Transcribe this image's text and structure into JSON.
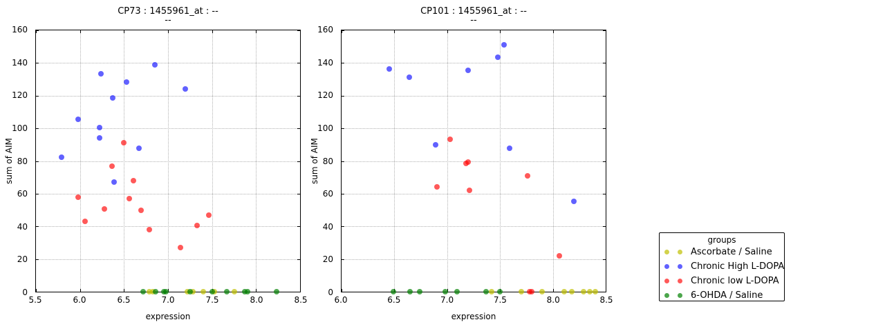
{
  "colors": {
    "yellow": "rgba(191,191,0,0.7)",
    "blue": "rgba(0,0,255,0.62)",
    "red": "rgba(255,0,0,0.65)",
    "green": "rgba(0,128,0,0.7)",
    "grid": "#b0b0b0",
    "axis": "#000000"
  },
  "legend": {
    "title": "groups",
    "entries": [
      {
        "label": "Ascorbate / Saline",
        "color": "yellow"
      },
      {
        "label": "Chronic High L-DOPA",
        "color": "blue"
      },
      {
        "label": "Chronic low L-DOPA",
        "color": "red"
      },
      {
        "label": "6-OHDA / Saline",
        "color": "green"
      }
    ]
  },
  "chart_data": [
    {
      "type": "scatter",
      "title": "CP73 : 1455961_at : --",
      "subtitle": "--",
      "xlabel": "expression",
      "ylabel": "sum of AIM",
      "xlim": [
        5.5,
        8.5
      ],
      "ylim": [
        0,
        160
      ],
      "xticks": [
        5.5,
        6.0,
        6.5,
        7.0,
        7.5,
        8.0,
        8.5
      ],
      "xtick_labels": [
        "5.5",
        "6.0",
        "6.5",
        "7.0",
        "7.5",
        "8.0",
        "8.5"
      ],
      "yticks": [
        0,
        20,
        40,
        60,
        80,
        100,
        120,
        140,
        160
      ],
      "ytick_labels": [
        "0",
        "20",
        "40",
        "60",
        "80",
        "100",
        "120",
        "140",
        "160"
      ],
      "grid": "dotted",
      "series": [
        {
          "name": "Ascorbate / Saline",
          "color": "yellow",
          "points": [
            [
              6.79,
              0
            ],
            [
              6.83,
              0
            ],
            [
              7.22,
              0
            ],
            [
              7.28,
              0
            ],
            [
              7.4,
              0
            ],
            [
              7.53,
              0
            ],
            [
              7.75,
              0
            ]
          ]
        },
        {
          "name": "Chronic High L-DOPA",
          "color": "blue",
          "points": [
            [
              5.79,
              82.5
            ],
            [
              5.98,
              105.5
            ],
            [
              6.22,
              100.5
            ],
            [
              6.22,
              94
            ],
            [
              6.24,
              133.5
            ],
            [
              6.37,
              118.5
            ],
            [
              6.39,
              67
            ],
            [
              6.53,
              128.5
            ],
            [
              6.67,
              88
            ],
            [
              6.85,
              139
            ],
            [
              7.2,
              124
            ]
          ]
        },
        {
          "name": "Chronic low L-DOPA",
          "color": "red",
          "points": [
            [
              5.98,
              58
            ],
            [
              6.06,
              43
            ],
            [
              6.28,
              50.5
            ],
            [
              6.36,
              77
            ],
            [
              6.5,
              91
            ],
            [
              6.56,
              57
            ],
            [
              6.61,
              68
            ],
            [
              6.69,
              50
            ],
            [
              6.79,
              38
            ],
            [
              7.14,
              27
            ],
            [
              7.33,
              40.5
            ],
            [
              7.46,
              47
            ]
          ]
        },
        {
          "name": "6-OHDA / Saline",
          "color": "green",
          "points": [
            [
              6.72,
              0
            ],
            [
              6.86,
              0
            ],
            [
              6.95,
              0
            ],
            [
              6.98,
              0
            ],
            [
              7.25,
              0
            ],
            [
              7.5,
              0
            ],
            [
              7.67,
              0
            ],
            [
              7.87,
              0
            ],
            [
              7.9,
              0
            ],
            [
              8.23,
              0
            ]
          ]
        }
      ]
    },
    {
      "type": "scatter",
      "title": "CP101 : 1455961_at : --",
      "subtitle": "--",
      "xlabel": "expression",
      "ylabel": "sum of AIM",
      "xlim": [
        6.0,
        8.5
      ],
      "ylim": [
        0,
        160
      ],
      "xticks": [
        6.0,
        6.5,
        7.0,
        7.5,
        8.0,
        8.5
      ],
      "xtick_labels": [
        "6.0",
        "6.5",
        "7.0",
        "7.5",
        "8.0",
        "8.5"
      ],
      "yticks": [
        0,
        20,
        40,
        60,
        80,
        100,
        120,
        140,
        160
      ],
      "ytick_labels": [
        "0",
        "20",
        "40",
        "60",
        "80",
        "100",
        "120",
        "140",
        "160"
      ],
      "grid": "dotted",
      "series": [
        {
          "name": "Ascorbate / Saline",
          "color": "yellow",
          "points": [
            [
              7.42,
              0
            ],
            [
              7.7,
              0
            ],
            [
              7.9,
              0
            ],
            [
              8.11,
              0
            ],
            [
              8.18,
              0
            ],
            [
              8.29,
              0
            ],
            [
              8.35,
              0
            ],
            [
              8.4,
              0
            ]
          ]
        },
        {
          "name": "Chronic High L-DOPA",
          "color": "blue",
          "points": [
            [
              6.45,
              136.5
            ],
            [
              6.64,
              131.5
            ],
            [
              6.89,
              90
            ],
            [
              7.2,
              135.5
            ],
            [
              7.48,
              143.5
            ],
            [
              7.54,
              151
            ],
            [
              7.59,
              88
            ],
            [
              8.2,
              55.5
            ]
          ]
        },
        {
          "name": "Chronic low L-DOPA",
          "color": "red",
          "points": [
            [
              6.9,
              64
            ],
            [
              7.03,
              93.5
            ],
            [
              7.18,
              78.5
            ],
            [
              7.2,
              79.5
            ],
            [
              7.21,
              62
            ],
            [
              7.76,
              71
            ],
            [
              7.78,
              0
            ],
            [
              7.8,
              0
            ],
            [
              8.06,
              22
            ]
          ]
        },
        {
          "name": "6-OHDA / Saline",
          "color": "green",
          "points": [
            [
              6.49,
              0
            ],
            [
              6.65,
              0
            ],
            [
              6.74,
              0
            ],
            [
              6.98,
              0
            ],
            [
              7.09,
              0
            ],
            [
              7.37,
              0
            ],
            [
              7.5,
              0
            ]
          ]
        }
      ]
    }
  ]
}
